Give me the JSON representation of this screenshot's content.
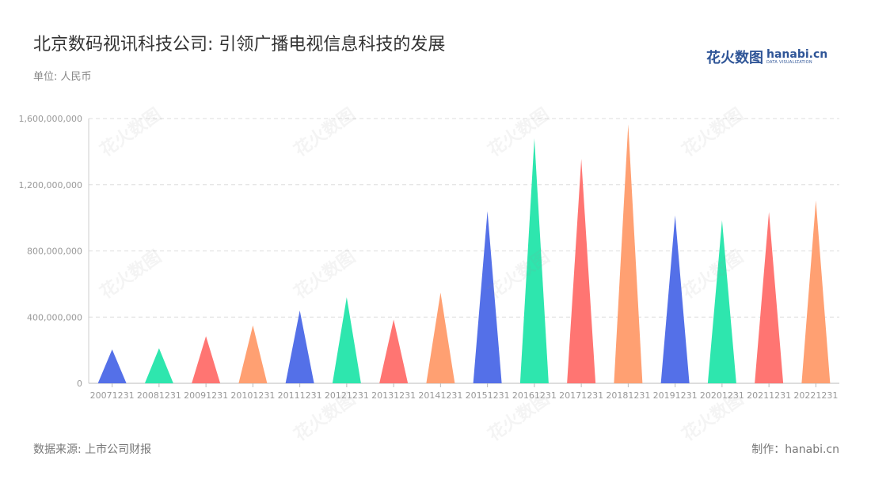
{
  "title": "北京数码视讯科技公司: 引领广播电视信息科技的发展",
  "unit": "单位: 人民币",
  "logo": {
    "cn": "花火数图",
    "en": "hanabi.cn",
    "sub": "DATA VISUALIZATION"
  },
  "footer": {
    "source": "数据来源: 上市公司财报",
    "maker": "制作：hanabi.cn"
  },
  "watermark_text": "花火数图",
  "chart_data": {
    "type": "bar",
    "categories": [
      "20071231",
      "20081231",
      "20091231",
      "20101231",
      "20111231",
      "20121231",
      "20131231",
      "20141231",
      "20151231",
      "20161231",
      "20171231",
      "20181231",
      "20191231",
      "20201231",
      "20211231",
      "20221231"
    ],
    "values": [
      205000000,
      212000000,
      285000000,
      350000000,
      440000000,
      520000000,
      385000000,
      548000000,
      1040000000,
      1480000000,
      1355000000,
      1565000000,
      1015000000,
      985000000,
      1035000000,
      1105000000
    ],
    "ylim": [
      0,
      1600000000
    ],
    "yticks": [
      0,
      400000000,
      800000000,
      1200000000,
      1600000000
    ],
    "ytick_labels": [
      "0",
      "400,000,000",
      "800,000,000",
      "1,200,000,000",
      "1,600,000,000"
    ],
    "colors": [
      "#5470e8",
      "#2ee6ae",
      "#ff7572",
      "#ffa072"
    ],
    "grid": true,
    "mark_shape": "triangle"
  }
}
